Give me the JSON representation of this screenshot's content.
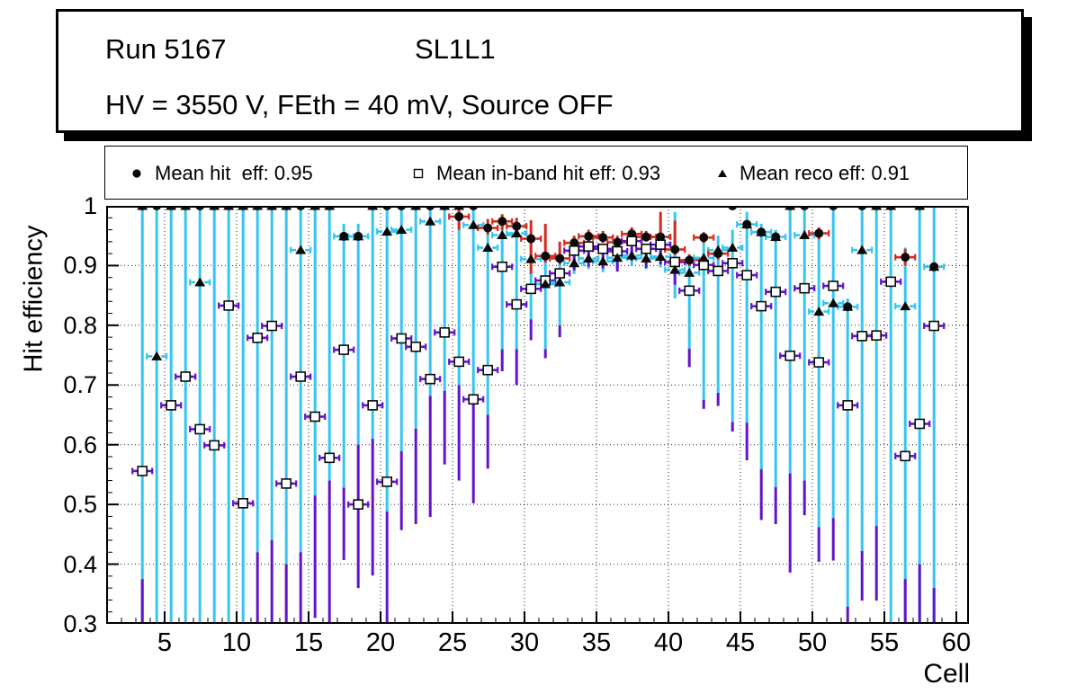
{
  "title": {
    "run": "Run 5167",
    "layer": "SL1L1",
    "conditions": "HV = 3550 V, FEth = 40 mV, Source OFF"
  },
  "legend": {
    "entries": [
      {
        "marker": "filled-circle",
        "label": "Mean hit  eff: 0.95",
        "mean": 0.95
      },
      {
        "marker": "open-square",
        "label": "Mean in-band hit eff: 0.93",
        "mean": 0.93
      },
      {
        "marker": "filled-triangle",
        "label": "Mean reco eff: 0.91",
        "mean": 0.91
      }
    ]
  },
  "axes": {
    "y_label": "Hit efficiency",
    "x_label": "Cell",
    "y_tick_labels": [
      "1",
      "0.9",
      "0.8",
      "0.7",
      "0.6",
      "0.5",
      "0.4",
      "0.3"
    ],
    "y_tick_values": [
      1.0,
      0.9,
      0.8,
      0.7,
      0.6,
      0.5,
      0.4,
      0.3
    ],
    "x_tick_values": [
      5,
      10,
      15,
      20,
      25,
      30,
      35,
      40,
      45,
      50,
      55,
      60
    ],
    "y_range": [
      0.3,
      1.0
    ],
    "grid": "dotted"
  },
  "colors": {
    "marker": "#0a0a0a",
    "hit_error": "#d62b1e",
    "inband_error": "#6314c9",
    "reco_error": "#35c5f0",
    "frame": "#000000",
    "grid": "#222222",
    "background": "#ffffff"
  },
  "chart_data": {
    "type": "scatter",
    "title": "Run 5167 SL1L1 — HV = 3550 V, FEth = 40 mV, Source OFF",
    "xlabel": "Cell",
    "ylabel": "Hit efficiency",
    "xlim": [
      1,
      61
    ],
    "ylim": [
      0.3,
      1.0
    ],
    "legend_position": "top",
    "series_meta": [
      {
        "name": "Mean hit eff",
        "mean": 0.95,
        "marker": "circle",
        "error_color": "#d62b1e"
      },
      {
        "name": "Mean in-band hit eff",
        "mean": 0.93,
        "marker": "square",
        "error_color": "#6314c9"
      },
      {
        "name": "Mean reco eff",
        "mean": 0.91,
        "marker": "triangle",
        "error_color": "#35c5f0"
      }
    ],
    "columns": [
      "cell",
      "hit",
      "inband",
      "reco",
      "cyan_lo",
      "cyan_hi",
      "purple_lo",
      "purple_hi",
      "red_lo",
      "red_hi",
      "red_whisker"
    ],
    "points": [
      [
        3,
        1.0,
        0.556,
        1.0,
        0.28,
        1.0,
        0.28,
        0.375,
        null,
        null,
        false
      ],
      [
        4,
        1.0,
        null,
        0.748,
        0.28,
        1.0,
        null,
        null,
        null,
        null,
        false
      ],
      [
        5,
        1.0,
        0.666,
        1.0,
        0.28,
        1.0,
        null,
        null,
        null,
        null,
        false
      ],
      [
        6,
        1.0,
        0.714,
        1.0,
        0.28,
        1.0,
        null,
        null,
        null,
        null,
        false
      ],
      [
        7,
        1.0,
        0.626,
        0.872,
        0.28,
        1.0,
        null,
        null,
        null,
        null,
        false
      ],
      [
        8,
        1.0,
        0.599,
        1.0,
        0.28,
        1.0,
        null,
        null,
        null,
        null,
        false
      ],
      [
        9,
        1.0,
        0.833,
        1.0,
        0.28,
        1.0,
        null,
        null,
        null,
        null,
        false
      ],
      [
        10,
        1.0,
        0.502,
        1.0,
        0.28,
        1.0,
        null,
        null,
        null,
        null,
        false
      ],
      [
        11,
        1.0,
        0.779,
        1.0,
        0.42,
        1.0,
        0.28,
        0.42,
        null,
        null,
        false
      ],
      [
        12,
        1.0,
        0.799,
        1.0,
        0.44,
        1.0,
        0.28,
        0.44,
        null,
        null,
        false
      ],
      [
        13,
        1.0,
        0.535,
        1.0,
        0.4,
        1.0,
        0.28,
        0.4,
        null,
        null,
        false
      ],
      [
        14,
        1.0,
        0.714,
        0.926,
        0.42,
        1.0,
        0.28,
        0.42,
        null,
        null,
        false
      ],
      [
        15,
        1.0,
        0.647,
        1.0,
        0.515,
        1.0,
        0.31,
        0.515,
        null,
        null,
        false
      ],
      [
        16,
        1.0,
        0.578,
        1.0,
        0.54,
        1.0,
        0.28,
        0.54,
        null,
        null,
        false
      ],
      [
        17,
        0.949,
        0.759,
        0.949,
        0.528,
        0.97,
        0.407,
        0.528,
        null,
        null,
        false
      ],
      [
        18,
        0.949,
        0.5,
        0.949,
        0.6,
        0.97,
        0.36,
        0.6,
        null,
        null,
        false
      ],
      [
        19,
        1.0,
        0.666,
        1.0,
        0.61,
        1.0,
        0.381,
        0.61,
        null,
        null,
        false
      ],
      [
        20,
        1.0,
        0.538,
        0.957,
        0.488,
        1.0,
        0.28,
        0.488,
        null,
        null,
        false
      ],
      [
        21,
        1.0,
        0.778,
        0.96,
        0.589,
        1.0,
        0.457,
        0.589,
        null,
        null,
        false
      ],
      [
        22,
        1.0,
        0.764,
        1.0,
        0.627,
        1.0,
        0.467,
        0.627,
        null,
        null,
        false
      ],
      [
        23,
        1.0,
        0.71,
        0.974,
        0.682,
        1.0,
        0.479,
        0.682,
        null,
        null,
        false
      ],
      [
        24,
        1.0,
        0.788,
        1.0,
        0.69,
        1.0,
        0.567,
        0.69,
        null,
        null,
        false
      ],
      [
        25,
        0.982,
        0.739,
        1.0,
        0.7,
        1.0,
        0.54,
        0.7,
        0.96,
        1.0,
        true
      ],
      [
        26,
        1.0,
        0.676,
        0.968,
        0.68,
        1.0,
        0.502,
        0.68,
        null,
        null,
        false
      ],
      [
        27,
        0.963,
        0.725,
        0.93,
        0.65,
        0.955,
        0.56,
        0.65,
        0.952,
        0.978,
        true
      ],
      [
        28,
        0.974,
        0.898,
        0.951,
        0.76,
        0.965,
        0.723,
        0.76,
        0.96,
        0.986,
        true
      ],
      [
        29,
        0.966,
        0.835,
        0.954,
        0.76,
        0.96,
        0.7,
        0.76,
        0.954,
        0.98,
        true
      ],
      [
        30,
        0.945,
        0.861,
        0.911,
        0.81,
        0.94,
        0.775,
        0.81,
        0.886,
        0.976,
        true
      ],
      [
        31,
        0.916,
        0.875,
        0.869,
        0.76,
        0.91,
        0.745,
        0.76,
        0.905,
        0.97,
        true
      ],
      [
        32,
        0.912,
        0.887,
        0.872,
        0.8,
        0.91,
        0.78,
        0.8,
        0.902,
        0.94,
        true
      ],
      [
        33,
        0.938,
        0.925,
        0.904,
        0.886,
        0.916,
        0.892,
        0.926,
        0.928,
        0.95,
        true
      ],
      [
        34,
        0.949,
        0.932,
        0.912,
        0.894,
        0.924,
        0.898,
        0.933,
        0.94,
        0.96,
        true
      ],
      [
        35,
        0.947,
        0.928,
        0.907,
        0.889,
        0.919,
        0.895,
        0.929,
        0.938,
        0.958,
        true
      ],
      [
        36,
        0.939,
        0.924,
        0.913,
        0.895,
        0.925,
        0.89,
        0.925,
        0.93,
        0.95,
        true
      ],
      [
        37,
        0.953,
        0.941,
        0.917,
        0.899,
        0.929,
        0.908,
        0.942,
        0.944,
        0.964,
        true
      ],
      [
        38,
        0.948,
        0.928,
        0.912,
        0.894,
        0.924,
        0.896,
        0.93,
        0.94,
        0.958,
        true
      ],
      [
        39,
        0.948,
        0.935,
        0.915,
        0.897,
        0.927,
        0.902,
        0.936,
        0.938,
        0.99,
        true
      ],
      [
        40,
        0.927,
        0.906,
        0.893,
        0.845,
        0.99,
        0.868,
        0.907,
        0.918,
        0.975,
        true
      ],
      [
        41,
        0.909,
        0.858,
        0.888,
        0.761,
        0.918,
        0.73,
        0.761,
        0.899,
        0.919,
        true
      ],
      [
        42,
        0.947,
        0.901,
        0.913,
        0.675,
        0.95,
        0.66,
        0.675,
        0.938,
        0.956,
        true
      ],
      [
        43,
        0.92,
        0.891,
        0.926,
        0.687,
        0.95,
        0.665,
        0.687,
        0.91,
        0.93,
        true
      ],
      [
        44,
        1.0,
        0.904,
        0.93,
        0.638,
        0.96,
        0.622,
        0.638,
        null,
        null,
        false
      ],
      [
        45,
        0.969,
        0.884,
        0.969,
        0.637,
        0.99,
        0.574,
        0.637,
        null,
        null,
        false
      ],
      [
        46,
        0.956,
        0.832,
        0.956,
        0.559,
        0.97,
        0.474,
        0.559,
        null,
        null,
        false
      ],
      [
        47,
        0.948,
        0.856,
        0.948,
        0.529,
        0.96,
        0.467,
        0.529,
        null,
        null,
        false
      ],
      [
        48,
        1.0,
        0.749,
        1.0,
        0.552,
        1.0,
        0.386,
        0.552,
        null,
        null,
        false
      ],
      [
        49,
        1.0,
        0.862,
        0.951,
        0.54,
        1.0,
        0.482,
        0.54,
        null,
        null,
        false
      ],
      [
        50,
        0.954,
        0.738,
        0.823,
        0.462,
        0.955,
        0.404,
        0.462,
        0.944,
        0.964,
        true
      ],
      [
        51,
        1.0,
        0.866,
        0.837,
        0.477,
        1.0,
        0.406,
        0.477,
        null,
        null,
        false
      ],
      [
        52,
        0.831,
        0.666,
        0.831,
        0.329,
        0.845,
        0.299,
        0.329,
        null,
        null,
        false
      ],
      [
        53,
        1.0,
        0.782,
        0.926,
        0.422,
        1.0,
        0.339,
        0.422,
        null,
        null,
        false
      ],
      [
        54,
        1.0,
        0.783,
        1.0,
        0.464,
        1.0,
        0.339,
        0.464,
        null,
        null,
        false
      ],
      [
        55,
        1.0,
        0.873,
        1.0,
        0.28,
        1.0,
        null,
        null,
        null,
        null,
        false
      ],
      [
        56,
        0.914,
        0.581,
        0.832,
        0.28,
        0.93,
        0.28,
        0.375,
        0.9,
        0.928,
        true
      ],
      [
        57,
        1.0,
        0.635,
        1.0,
        0.28,
        1.0,
        0.3,
        0.4,
        null,
        null,
        false
      ],
      [
        58,
        0.898,
        0.799,
        0.898,
        0.28,
        1.0,
        0.28,
        0.36,
        null,
        null,
        false
      ]
    ]
  }
}
